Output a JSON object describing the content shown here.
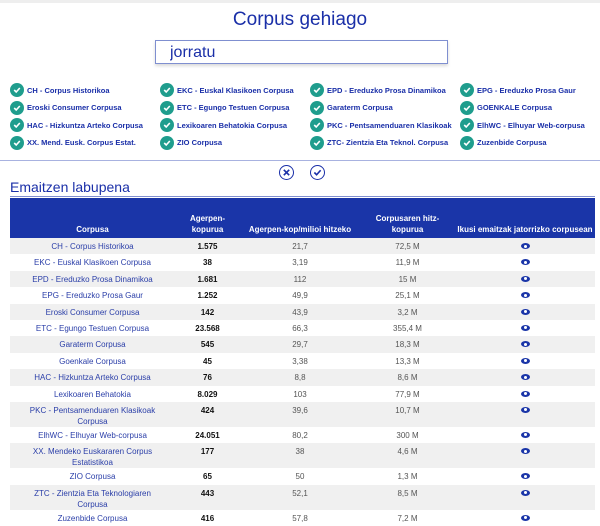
{
  "header": {
    "title": "Corpus gehiago",
    "search_value": "jorratu"
  },
  "corpora": [
    "CH - Corpus Historikoa",
    "EKC - Euskal Klasikoen Corpusa",
    "EPD - Ereduzko Prosa Dinamikoa",
    "EPG - Ereduzko Prosa Gaur",
    "Eroski Consumer Corpusa",
    "ETC - Egungo Testuen Corpusa",
    "Garaterm Corpusa",
    "GOENKALE Corpusa",
    "HAC - Hizkuntza Arteko Corpusa",
    "Lexikoaren Behatokia Corpusa",
    "PKC - Pentsamenduaren Klasikoak",
    "ElhWC - Elhuyar Web-corpusa",
    "XX. Mend. Eusk. Corpus Estat.",
    "ZIO Corpusa",
    "ZTC- Zientzia Eta Teknol. Corpusa",
    "Zuzenbide Corpusa"
  ],
  "actions": {
    "clear_icon": "x-circle-icon",
    "confirm_icon": "check-circle-icon"
  },
  "colors": {
    "accent": "#1a35a8",
    "check": "#1f9d8d"
  },
  "summary": {
    "title": "Emaitzen labupena",
    "headers": [
      "Corpusa",
      "Agerpen-kopurua",
      "Agerpen-kop/milioi hitzeko",
      "Corpusaren hitz-kopurua",
      "Ikusi emaitzak jatorrizko corpusean"
    ],
    "rows": [
      [
        "CH - Corpus Historikoa",
        "1.575",
        "21,7",
        "72,5 M"
      ],
      [
        "EKC - Euskal Klasikoen Corpusa",
        "38",
        "3,19",
        "11,9 M"
      ],
      [
        "EPD - Ereduzko Prosa Dinamikoa",
        "1.681",
        "112",
        "15 M"
      ],
      [
        "EPG - Ereduzko Prosa Gaur",
        "1.252",
        "49,9",
        "25,1 M"
      ],
      [
        "Eroski Consumer Corpusa",
        "142",
        "43,9",
        "3,2 M"
      ],
      [
        "ETC - Egungo Testuen Corpusa",
        "23.568",
        "66,3",
        "355,4 M"
      ],
      [
        "Garaterm Corpusa",
        "545",
        "29,7",
        "18,3 M"
      ],
      [
        "Goenkale Corpusa",
        "45",
        "3,38",
        "13,3 M"
      ],
      [
        "HAC - Hizkuntza Arteko Corpusa",
        "76",
        "8,8",
        "8,6 M"
      ],
      [
        "Lexikoaren Behatokia",
        "8.029",
        "103",
        "77,9 M"
      ],
      [
        "PKC - Pentsamenduaren Klasikoak Corpusa",
        "424",
        "39,6",
        "10,7 M"
      ],
      [
        "ElhWC - Elhuyar Web-corpusa",
        "24.051",
        "80,2",
        "300 M"
      ],
      [
        "XX. Mendeko Euskararen Corpus Estatistikoa",
        "177",
        "38",
        "4,6 M"
      ],
      [
        "ZIO Corpusa",
        "65",
        "50",
        "1,3 M"
      ],
      [
        "ZTC - Zientzia Eta Teknologiaren Corpusa",
        "443",
        "52,1",
        "8,5 M"
      ],
      [
        "Zuzenbide Corpusa",
        "416",
        "57,8",
        "7,2 M"
      ]
    ]
  }
}
